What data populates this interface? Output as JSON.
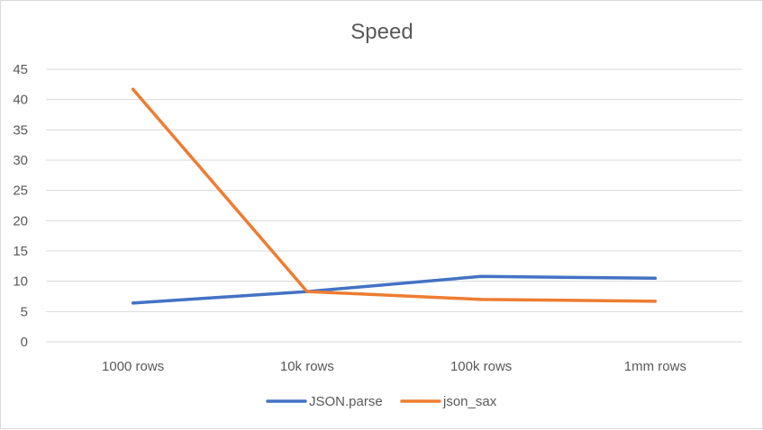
{
  "chart_data": {
    "type": "line",
    "title": "Speed",
    "categories": [
      "1000 rows",
      "10k rows",
      "100k rows",
      "1mm rows"
    ],
    "series": [
      {
        "name": "JSON.parse",
        "values": [
          6.4,
          8.3,
          10.8,
          10.5
        ],
        "color": "#4472C4"
      },
      {
        "name": "json_sax",
        "values": [
          41.7,
          8.3,
          7.0,
          6.7
        ],
        "color": "#ED7D31"
      }
    ],
    "ylim": [
      0,
      45
    ],
    "yticks": [
      "0",
      "5",
      "10",
      "15",
      "20",
      "25",
      "30",
      "35",
      "40",
      "45"
    ],
    "grid": true,
    "legend": "bottom",
    "gridColor": "#d9d9d9"
  }
}
